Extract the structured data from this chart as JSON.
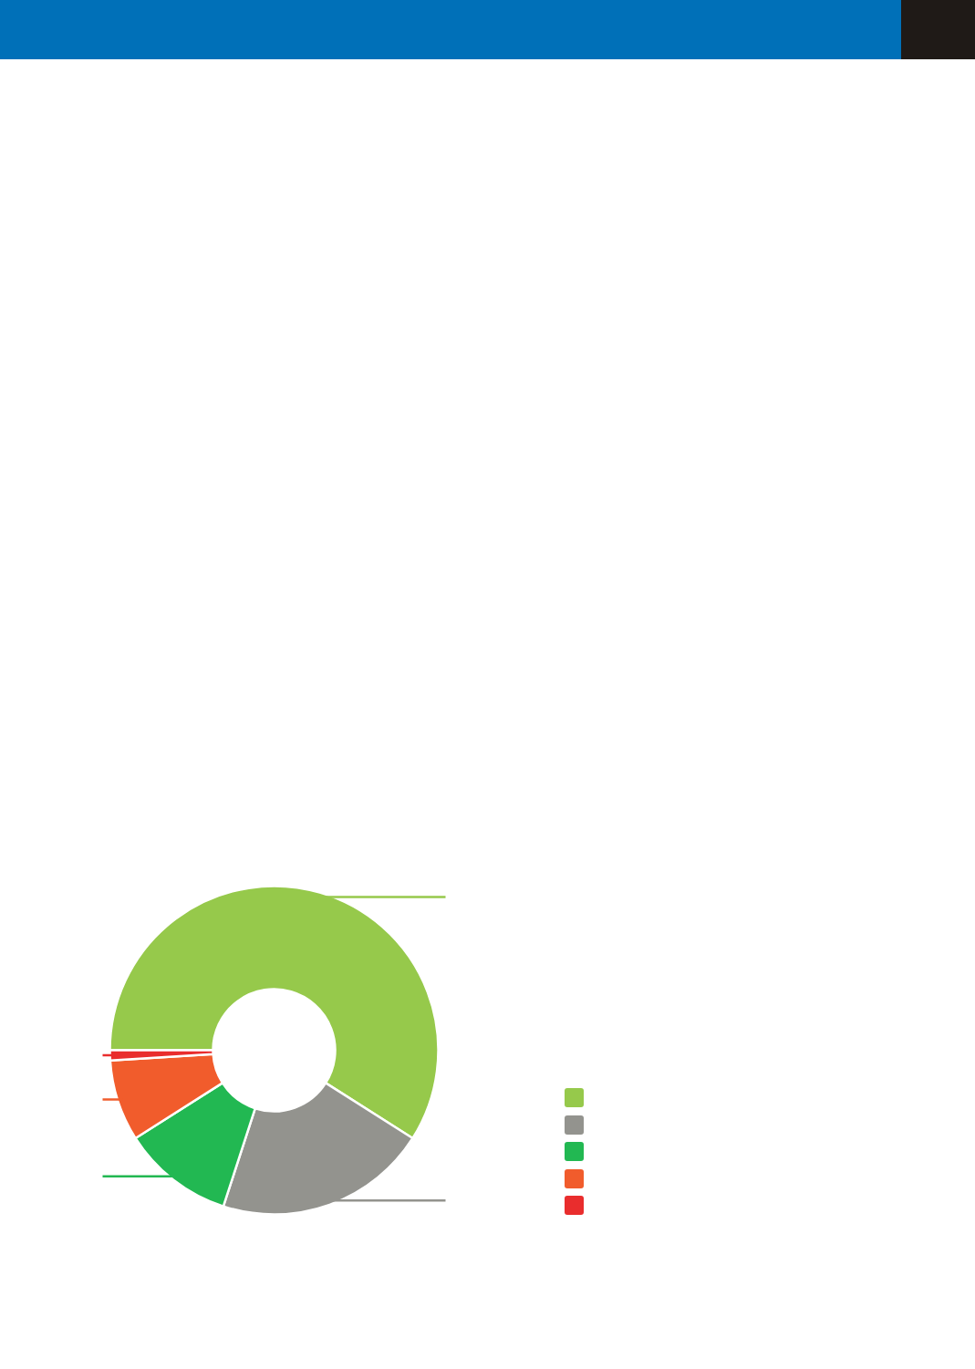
{
  "chart_data": {
    "type": "donut",
    "categories": [
      null,
      null,
      null,
      null,
      null
    ],
    "values": [
      59,
      21,
      11,
      8,
      1
    ],
    "colors": [
      "#96c94b",
      "#93938e",
      "#22b852",
      "#f15c2c",
      "#e92d2d"
    ]
  }
}
